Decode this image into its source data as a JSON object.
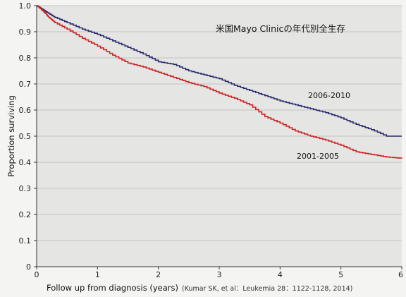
{
  "chart_data": {
    "type": "line",
    "step": true,
    "title": "米国Mayo Clinicの年代別全生存",
    "xlabel": "Follow up from diagnosis (years)",
    "ylabel": "Proportion surviving",
    "citation": "(Kumar SK, et al：Leukemia 28：1122-1128, 2014)",
    "xlim": [
      0,
      6
    ],
    "ylim": [
      0,
      1.0
    ],
    "x_ticks": [
      "0",
      "1",
      "2",
      "3",
      "4",
      "5",
      "6"
    ],
    "y_ticks": [
      "0",
      "0.1",
      "0.2",
      "0.3",
      "0.4",
      "0.5",
      "0.6",
      "0.7",
      "0.8",
      "0.9",
      "1.0"
    ],
    "grid": true,
    "series": [
      {
        "name": "2006-2010",
        "color": "#2a2a6e",
        "x": [
          0,
          0.1,
          0.2,
          0.3,
          0.5,
          0.75,
          1.0,
          1.25,
          1.5,
          1.75,
          2.0,
          2.25,
          2.5,
          2.75,
          3.0,
          3.25,
          3.5,
          3.75,
          4.0,
          4.25,
          4.5,
          4.75,
          5.0,
          5.25,
          5.5,
          5.75,
          6.0
        ],
        "y": [
          1.0,
          0.985,
          0.97,
          0.955,
          0.935,
          0.91,
          0.89,
          0.865,
          0.84,
          0.815,
          0.785,
          0.775,
          0.75,
          0.735,
          0.72,
          0.695,
          0.675,
          0.655,
          0.635,
          0.62,
          0.605,
          0.59,
          0.57,
          0.545,
          0.525,
          0.5,
          0.5
        ]
      },
      {
        "name": "2001-2005",
        "color": "#cc2222",
        "x": [
          0,
          0.1,
          0.2,
          0.3,
          0.5,
          0.75,
          1.0,
          1.25,
          1.5,
          1.75,
          2.0,
          2.25,
          2.5,
          2.75,
          3.0,
          3.25,
          3.5,
          3.75,
          4.0,
          4.25,
          4.5,
          4.75,
          5.0,
          5.25,
          5.5,
          5.75,
          6.0
        ],
        "y": [
          1.0,
          0.98,
          0.955,
          0.935,
          0.91,
          0.875,
          0.845,
          0.81,
          0.78,
          0.765,
          0.745,
          0.725,
          0.705,
          0.69,
          0.665,
          0.645,
          0.62,
          0.575,
          0.55,
          0.52,
          0.5,
          0.485,
          0.465,
          0.44,
          0.43,
          0.42,
          0.415
        ]
      }
    ]
  }
}
